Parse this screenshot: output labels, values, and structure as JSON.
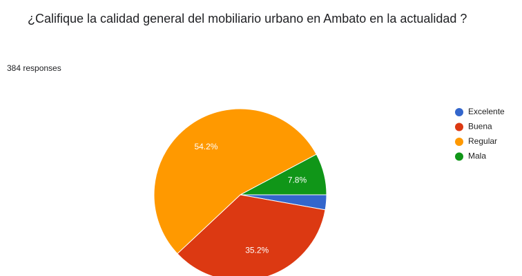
{
  "chart_data": {
    "type": "pie",
    "title": "¿Califique la calidad general del mobiliario urbano en Ambato en la actualidad ?",
    "subtitle": "384 responses",
    "categories": [
      "Excelente",
      "Buena",
      "Regular",
      "Mala"
    ],
    "values": [
      2.8,
      35.2,
      54.2,
      7.8
    ],
    "value_labels": [
      null,
      "35.2%",
      "54.2%",
      "7.8%"
    ],
    "colors": [
      "#3366cc",
      "#dc3912",
      "#ff9900",
      "#109618"
    ],
    "legend": "right"
  }
}
